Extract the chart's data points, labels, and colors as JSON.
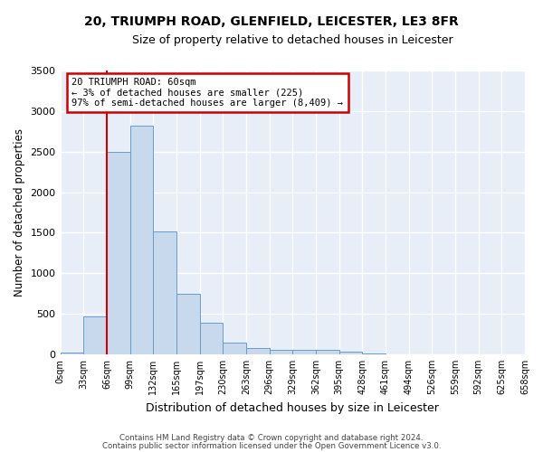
{
  "title1": "20, TRIUMPH ROAD, GLENFIELD, LEICESTER, LE3 8FR",
  "title2": "Size of property relative to detached houses in Leicester",
  "xlabel": "Distribution of detached houses by size in Leicester",
  "ylabel": "Number of detached properties",
  "bar_color": "#c8d9ee",
  "bar_edge_color": "#6a9cc8",
  "background_color": "#e8eef8",
  "grid_color": "#ffffff",
  "bin_labels": [
    "0sqm",
    "33sqm",
    "66sqm",
    "99sqm",
    "132sqm",
    "165sqm",
    "197sqm",
    "230sqm",
    "263sqm",
    "296sqm",
    "329sqm",
    "362sqm",
    "395sqm",
    "428sqm",
    "461sqm",
    "494sqm",
    "526sqm",
    "559sqm",
    "592sqm",
    "625sqm",
    "658sqm"
  ],
  "bar_values": [
    25,
    470,
    2500,
    2820,
    1520,
    745,
    390,
    140,
    80,
    55,
    55,
    55,
    30,
    10,
    0,
    0,
    0,
    0,
    0,
    0
  ],
  "marker_label_line1": "20 TRIUMPH ROAD: 60sqm",
  "marker_label_line2": "← 3% of detached houses are smaller (225)",
  "marker_label_line3": "97% of semi-detached houses are larger (8,409) →",
  "annotation_box_color": "#ffffff",
  "annotation_border_color": "#cc0000",
  "marker_line_color": "#cc0000",
  "ylim": [
    0,
    3500
  ],
  "yticks": [
    0,
    500,
    1000,
    1500,
    2000,
    2500,
    3000,
    3500
  ],
  "footer1": "Contains HM Land Registry data © Crown copyright and database right 2024.",
  "footer2": "Contains public sector information licensed under the Open Government Licence v3.0."
}
